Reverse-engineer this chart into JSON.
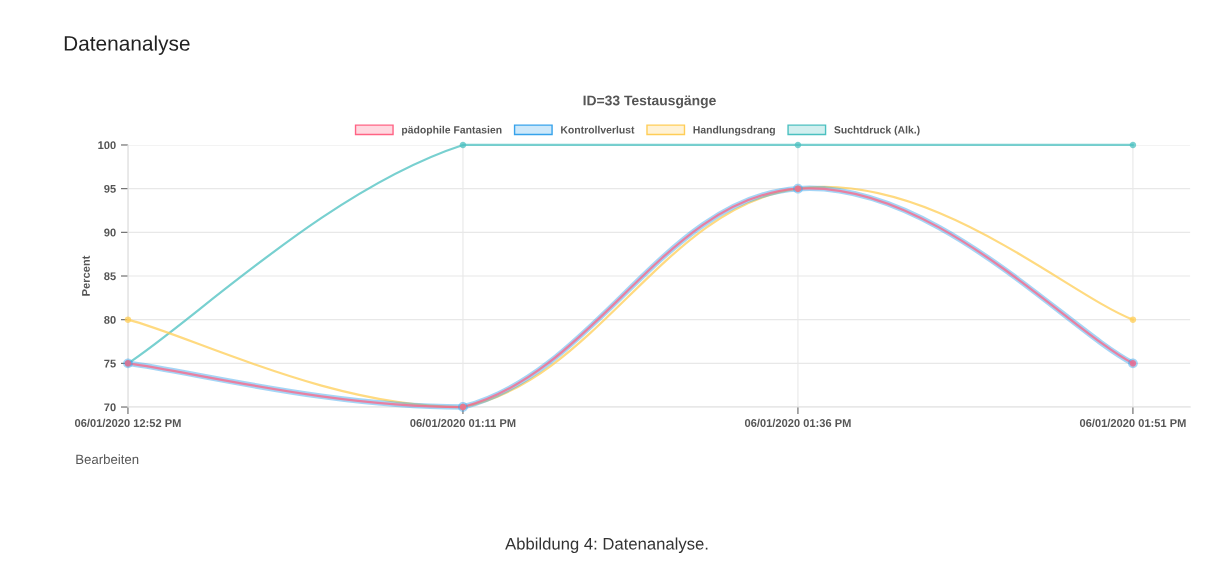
{
  "chart_data": {
    "type": "line",
    "title": "Datenanalyse",
    "subtitle": "ID=33 Testausgänge",
    "ylabel": "Percent",
    "categories": [
      "06/01/2020 12:52 PM",
      "06/01/2020 01:11 PM",
      "06/01/2020 01:36 PM",
      "06/01/2020 01:51 PM"
    ],
    "series": [
      {
        "name": "pädophile Fantasien",
        "color": "#ff6384",
        "values": [
          75,
          70,
          95,
          75
        ]
      },
      {
        "name": "Kontrollverlust",
        "color": "#36a2eb",
        "values": [
          75,
          70,
          95,
          75
        ]
      },
      {
        "name": "Handlungsdrang",
        "color": "#ffcd56",
        "values": [
          80,
          70,
          95,
          80
        ]
      },
      {
        "name": "Suchtdruck (Alk.)",
        "color": "#4bc0c0",
        "values": [
          75,
          100,
          100,
          100
        ]
      }
    ],
    "ylim": [
      70,
      100
    ],
    "yticks": [
      70,
      75,
      80,
      85,
      90,
      95,
      100
    ],
    "grid": true,
    "legend": "top",
    "marker": "circle",
    "line_style": "solid",
    "annotations": [
      "Bearbeiten",
      "Abbildung 4: Datenanalyse."
    ]
  }
}
